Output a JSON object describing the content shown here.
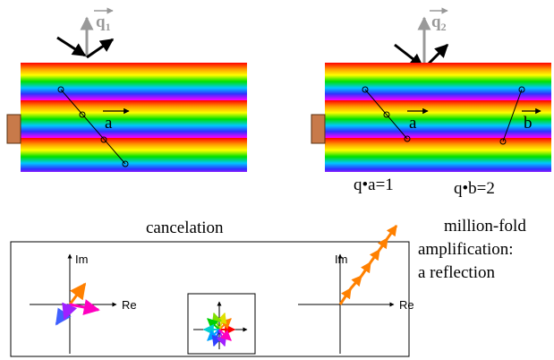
{
  "left_panel": {
    "q_label": {
      "base": "q",
      "sub": "1"
    },
    "vector_label": "a"
  },
  "right_panel": {
    "q_label": {
      "base": "q",
      "sub": "2"
    },
    "vector_labels": [
      "a",
      "b"
    ],
    "equations": [
      "q•a=1",
      "q•b=2"
    ]
  },
  "cancelation": {
    "title": "cancelation",
    "axis_labels": {
      "im": "Im",
      "re": "Re"
    }
  },
  "amplification": {
    "lines": [
      "million-fold",
      "amplification:",
      "a reflection"
    ],
    "axis_labels": {
      "im": "Im",
      "re": "Re"
    }
  }
}
